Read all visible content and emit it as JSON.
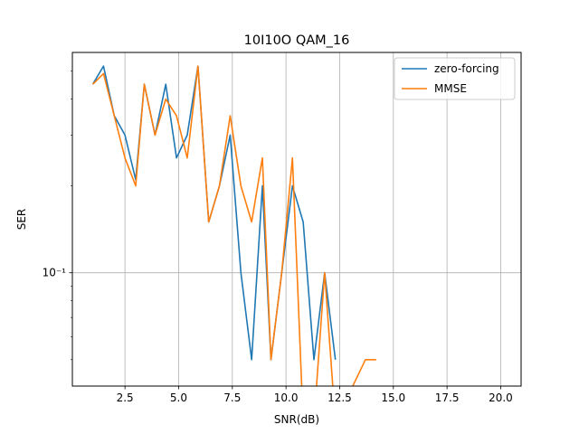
{
  "chart_data": {
    "type": "line",
    "title": "10I10O QAM_16",
    "xlabel": "SNR(dB)",
    "ylabel": "SER",
    "yscale": "log",
    "grid": true,
    "legend_position": "top-right",
    "xlim": [
      0.05,
      20.95
    ],
    "ylim": [
      0.0405,
      0.58
    ],
    "xticks": [
      2.5,
      5.0,
      7.5,
      10.0,
      12.5,
      15.0,
      17.5,
      20.0
    ],
    "xtick_labels": [
      "2.5",
      "5.0",
      "7.5",
      "10.0",
      "12.5",
      "15.0",
      "17.5",
      "20.0"
    ],
    "yticks": [
      0.1
    ],
    "ytick_labels": [
      "10⁻¹"
    ],
    "series": [
      {
        "name": "zero-forcing",
        "color": "#1f77b4",
        "x": [
          1.0,
          1.5,
          2.0,
          2.5,
          3.0,
          3.4,
          3.9,
          4.4,
          4.9,
          5.4,
          5.9,
          6.4,
          6.9,
          7.4,
          7.9,
          8.4,
          8.9,
          9.3,
          9.8,
          10.3,
          10.8,
          11.3,
          11.8,
          12.3
        ],
        "y": [
          0.45,
          0.52,
          0.35,
          0.3,
          0.21,
          0.45,
          0.3,
          0.45,
          0.25,
          0.3,
          0.52,
          0.15,
          0.2,
          0.3,
          0.1,
          0.05,
          0.2,
          0.05,
          0.1,
          0.2,
          0.15,
          0.05,
          0.1,
          0.05
        ]
      },
      {
        "name": "MMSE",
        "color": "#ff7f0e",
        "x": [
          1.0,
          1.5,
          2.0,
          2.5,
          3.0,
          3.4,
          3.9,
          4.4,
          4.9,
          5.4,
          5.9,
          6.4,
          6.9,
          7.4,
          7.9,
          8.4,
          8.9,
          9.3,
          9.8,
          10.3,
          10.8,
          11.3,
          11.8,
          12.3,
          13.7,
          14.2
        ],
        "y": [
          0.45,
          0.49,
          0.35,
          0.25,
          0.2,
          0.45,
          0.3,
          0.4,
          0.35,
          0.25,
          0.52,
          0.15,
          0.2,
          0.35,
          0.2,
          0.15,
          0.25,
          0.05,
          0.1,
          0.25,
          0.0,
          0.0,
          0.1,
          0.0,
          0.05,
          0.05
        ]
      }
    ]
  }
}
